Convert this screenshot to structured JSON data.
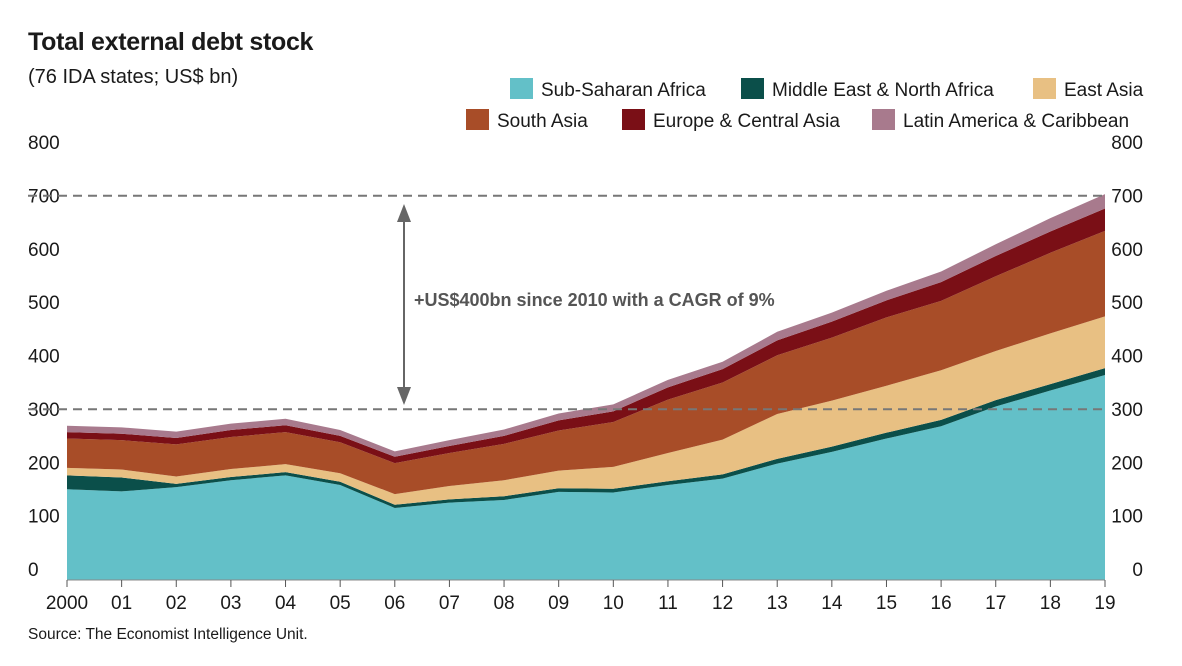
{
  "title": "Total external debt stock",
  "subtitle": "(76 IDA states; US$ bn)",
  "source": "Source: The Economist Intelligence Unit.",
  "annotation": "+US$400bn since 2010 with a CAGR of 9%",
  "chart_data": {
    "type": "area",
    "stacked": true,
    "title": "Total external debt stock",
    "subtitle": "(76 IDA states; US$ bn)",
    "xlabel": "",
    "ylabel": "",
    "ylim": [
      0,
      800
    ],
    "yticks": [
      0,
      100,
      200,
      300,
      400,
      500,
      600,
      700,
      800
    ],
    "categories": [
      "2000",
      "01",
      "02",
      "03",
      "04",
      "05",
      "06",
      "07",
      "08",
      "09",
      "10",
      "11",
      "12",
      "13",
      "14",
      "15",
      "16",
      "17",
      "18",
      "19"
    ],
    "series": [
      {
        "name": "Sub-Saharan Africa",
        "color": "#63c0c8",
        "values": [
          170,
          166,
          174,
          187,
          196,
          178,
          135,
          145,
          150,
          165,
          164,
          178,
          190,
          218,
          240,
          265,
          288,
          325,
          355,
          384
        ]
      },
      {
        "name": "Middle East & North Africa",
        "color": "#0b4f4a",
        "values": [
          26,
          26,
          6,
          6,
          6,
          6,
          6,
          6,
          7,
          7,
          7,
          7,
          8,
          9,
          10,
          11,
          12,
          12,
          12,
          13
        ]
      },
      {
        "name": "East Asia",
        "color": "#e8c083",
        "values": [
          14,
          15,
          14,
          15,
          15,
          16,
          20,
          25,
          30,
          33,
          41,
          53,
          65,
          84,
          86,
          88,
          93,
          92,
          95,
          97
        ]
      },
      {
        "name": "South Asia",
        "color": "#a84d28",
        "values": [
          55,
          55,
          60,
          60,
          60,
          58,
          58,
          62,
          68,
          75,
          84,
          100,
          107,
          110,
          118,
          128,
          130,
          140,
          151,
          160
        ]
      },
      {
        "name": "Europe & Central Asia",
        "color": "#7a0f16",
        "values": [
          12,
          12,
          12,
          13,
          13,
          12,
          12,
          13,
          15,
          19,
          20,
          23,
          25,
          28,
          30,
          32,
          35,
          38,
          40,
          42
        ]
      },
      {
        "name": "Latin America & Caribbean",
        "color": "#a87a8d",
        "values": [
          12,
          12,
          12,
          12,
          12,
          11,
          10,
          11,
          12,
          13,
          13,
          14,
          14,
          16,
          17,
          18,
          20,
          22,
          25,
          27
        ]
      }
    ],
    "reference_lines": [
      320,
      720
    ],
    "legend_position": "top-right",
    "grid": false
  }
}
